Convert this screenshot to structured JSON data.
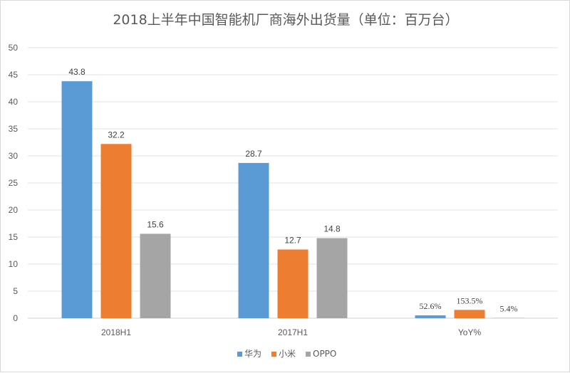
{
  "chart_data": {
    "type": "bar",
    "title": "2018上半年中国智能机厂商海外出货量（单位：百万台）",
    "categories": [
      "2018H1",
      "2017H1",
      "YoY%"
    ],
    "series": [
      {
        "name": "华为",
        "color": "#5b9bd5",
        "values": [
          43.8,
          28.7,
          0.526
        ],
        "labels": [
          "43.8",
          "28.7",
          "52.6%"
        ]
      },
      {
        "name": "小米",
        "color": "#ed7d31",
        "values": [
          32.2,
          12.7,
          1.535
        ],
        "labels": [
          "32.2",
          "12.7",
          "153.5%"
        ]
      },
      {
        "name": "OPPO",
        "color": "#a5a5a5",
        "values": [
          15.6,
          14.8,
          0.054
        ],
        "labels": [
          "15.6",
          "14.8",
          "5.4%"
        ]
      }
    ],
    "ylim": [
      0,
      50
    ],
    "yticks": [
      0,
      5,
      10,
      15,
      20,
      25,
      30,
      35,
      40,
      45,
      50
    ],
    "grid": true,
    "legend_position": "bottom"
  }
}
